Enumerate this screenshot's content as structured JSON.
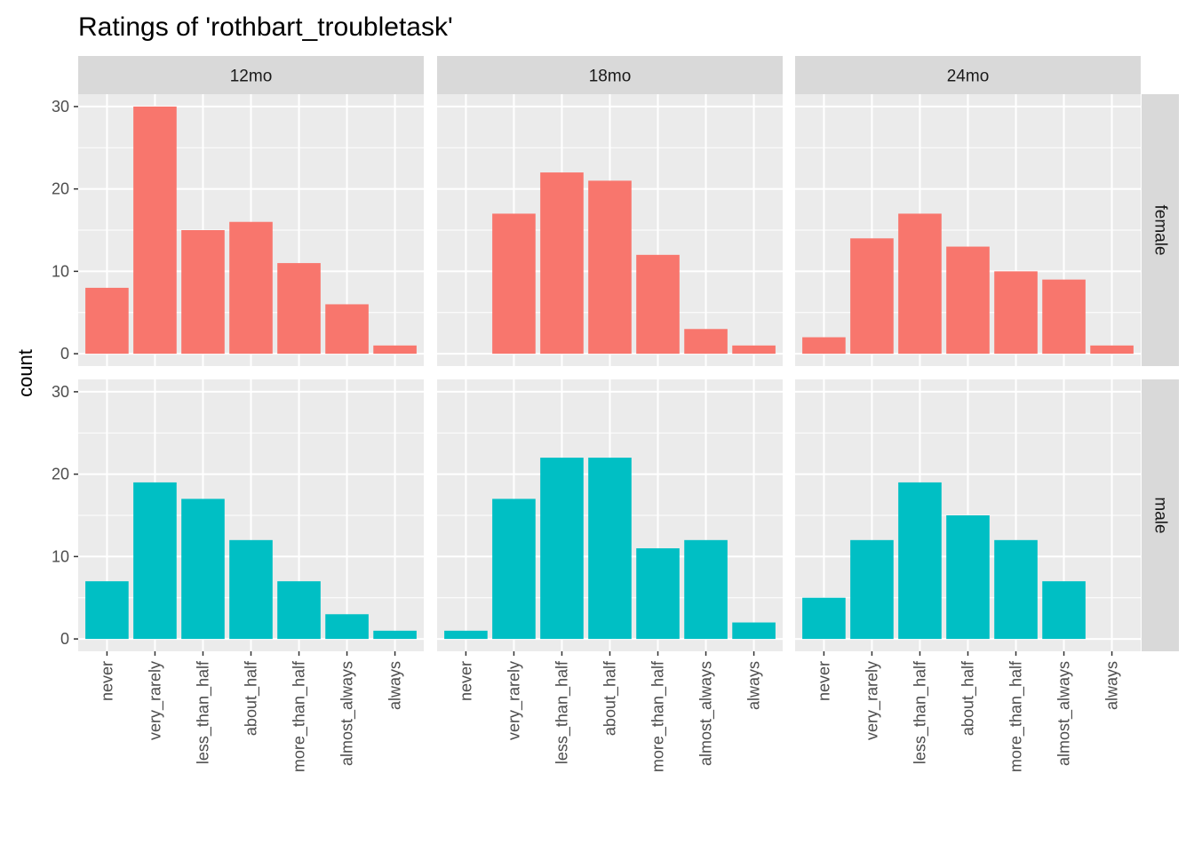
{
  "chart_data": {
    "type": "bar",
    "title": "Ratings of 'rothbart_troubletask'",
    "xlabel": "",
    "ylabel": "count",
    "ylim": [
      0,
      30
    ],
    "yticks": [
      0,
      10,
      20,
      30
    ],
    "grid": true,
    "legend": "none",
    "categories": [
      "never",
      "very_rarely",
      "less_than_half",
      "about_half",
      "more_than_half",
      "almost_always",
      "always"
    ],
    "facet_columns": [
      "12mo",
      "18mo",
      "24mo"
    ],
    "facet_rows": [
      "female",
      "male"
    ],
    "colors": {
      "female": "#F8766D",
      "male": "#00BFC4"
    },
    "panels": [
      {
        "row": "female",
        "col": "12mo",
        "values": [
          8,
          30,
          15,
          16,
          11,
          6,
          1
        ]
      },
      {
        "row": "female",
        "col": "18mo",
        "values": [
          0,
          17,
          22,
          21,
          12,
          3,
          1
        ]
      },
      {
        "row": "female",
        "col": "24mo",
        "values": [
          2,
          14,
          17,
          13,
          10,
          9,
          1
        ]
      },
      {
        "row": "male",
        "col": "12mo",
        "values": [
          7,
          19,
          17,
          12,
          7,
          3,
          1
        ]
      },
      {
        "row": "male",
        "col": "18mo",
        "values": [
          1,
          17,
          22,
          22,
          11,
          12,
          2
        ]
      },
      {
        "row": "male",
        "col": "24mo",
        "values": [
          5,
          12,
          19,
          15,
          12,
          7,
          0
        ]
      }
    ]
  }
}
